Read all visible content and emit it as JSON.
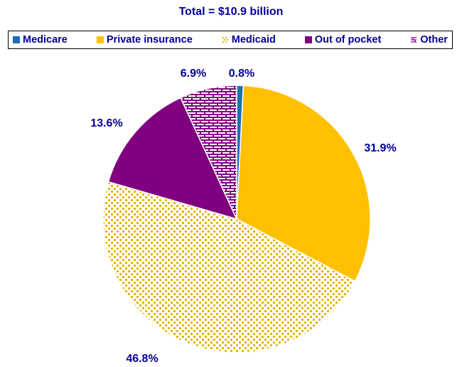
{
  "chart_data": {
    "type": "pie",
    "title": "Total = $10.9 billion",
    "slices": [
      {
        "name": "Medicare",
        "value": 0.8,
        "label": "0.8%",
        "color": "#1A6FB5",
        "pattern": "solid"
      },
      {
        "name": "Private insurance",
        "value": 31.9,
        "label": "31.9%",
        "color": "#FFC000",
        "pattern": "solid"
      },
      {
        "name": "Medicaid",
        "value": 46.8,
        "label": "46.8%",
        "color": "#E0B400",
        "pattern": "dots"
      },
      {
        "name": "Out of pocket",
        "value": 13.6,
        "label": "13.6%",
        "color": "#800080",
        "pattern": "solid"
      },
      {
        "name": "Other",
        "value": 6.9,
        "label": "6.9%",
        "color": "#800080",
        "pattern": "brick"
      }
    ],
    "legend_position": "top",
    "start": "top, clockwise"
  }
}
